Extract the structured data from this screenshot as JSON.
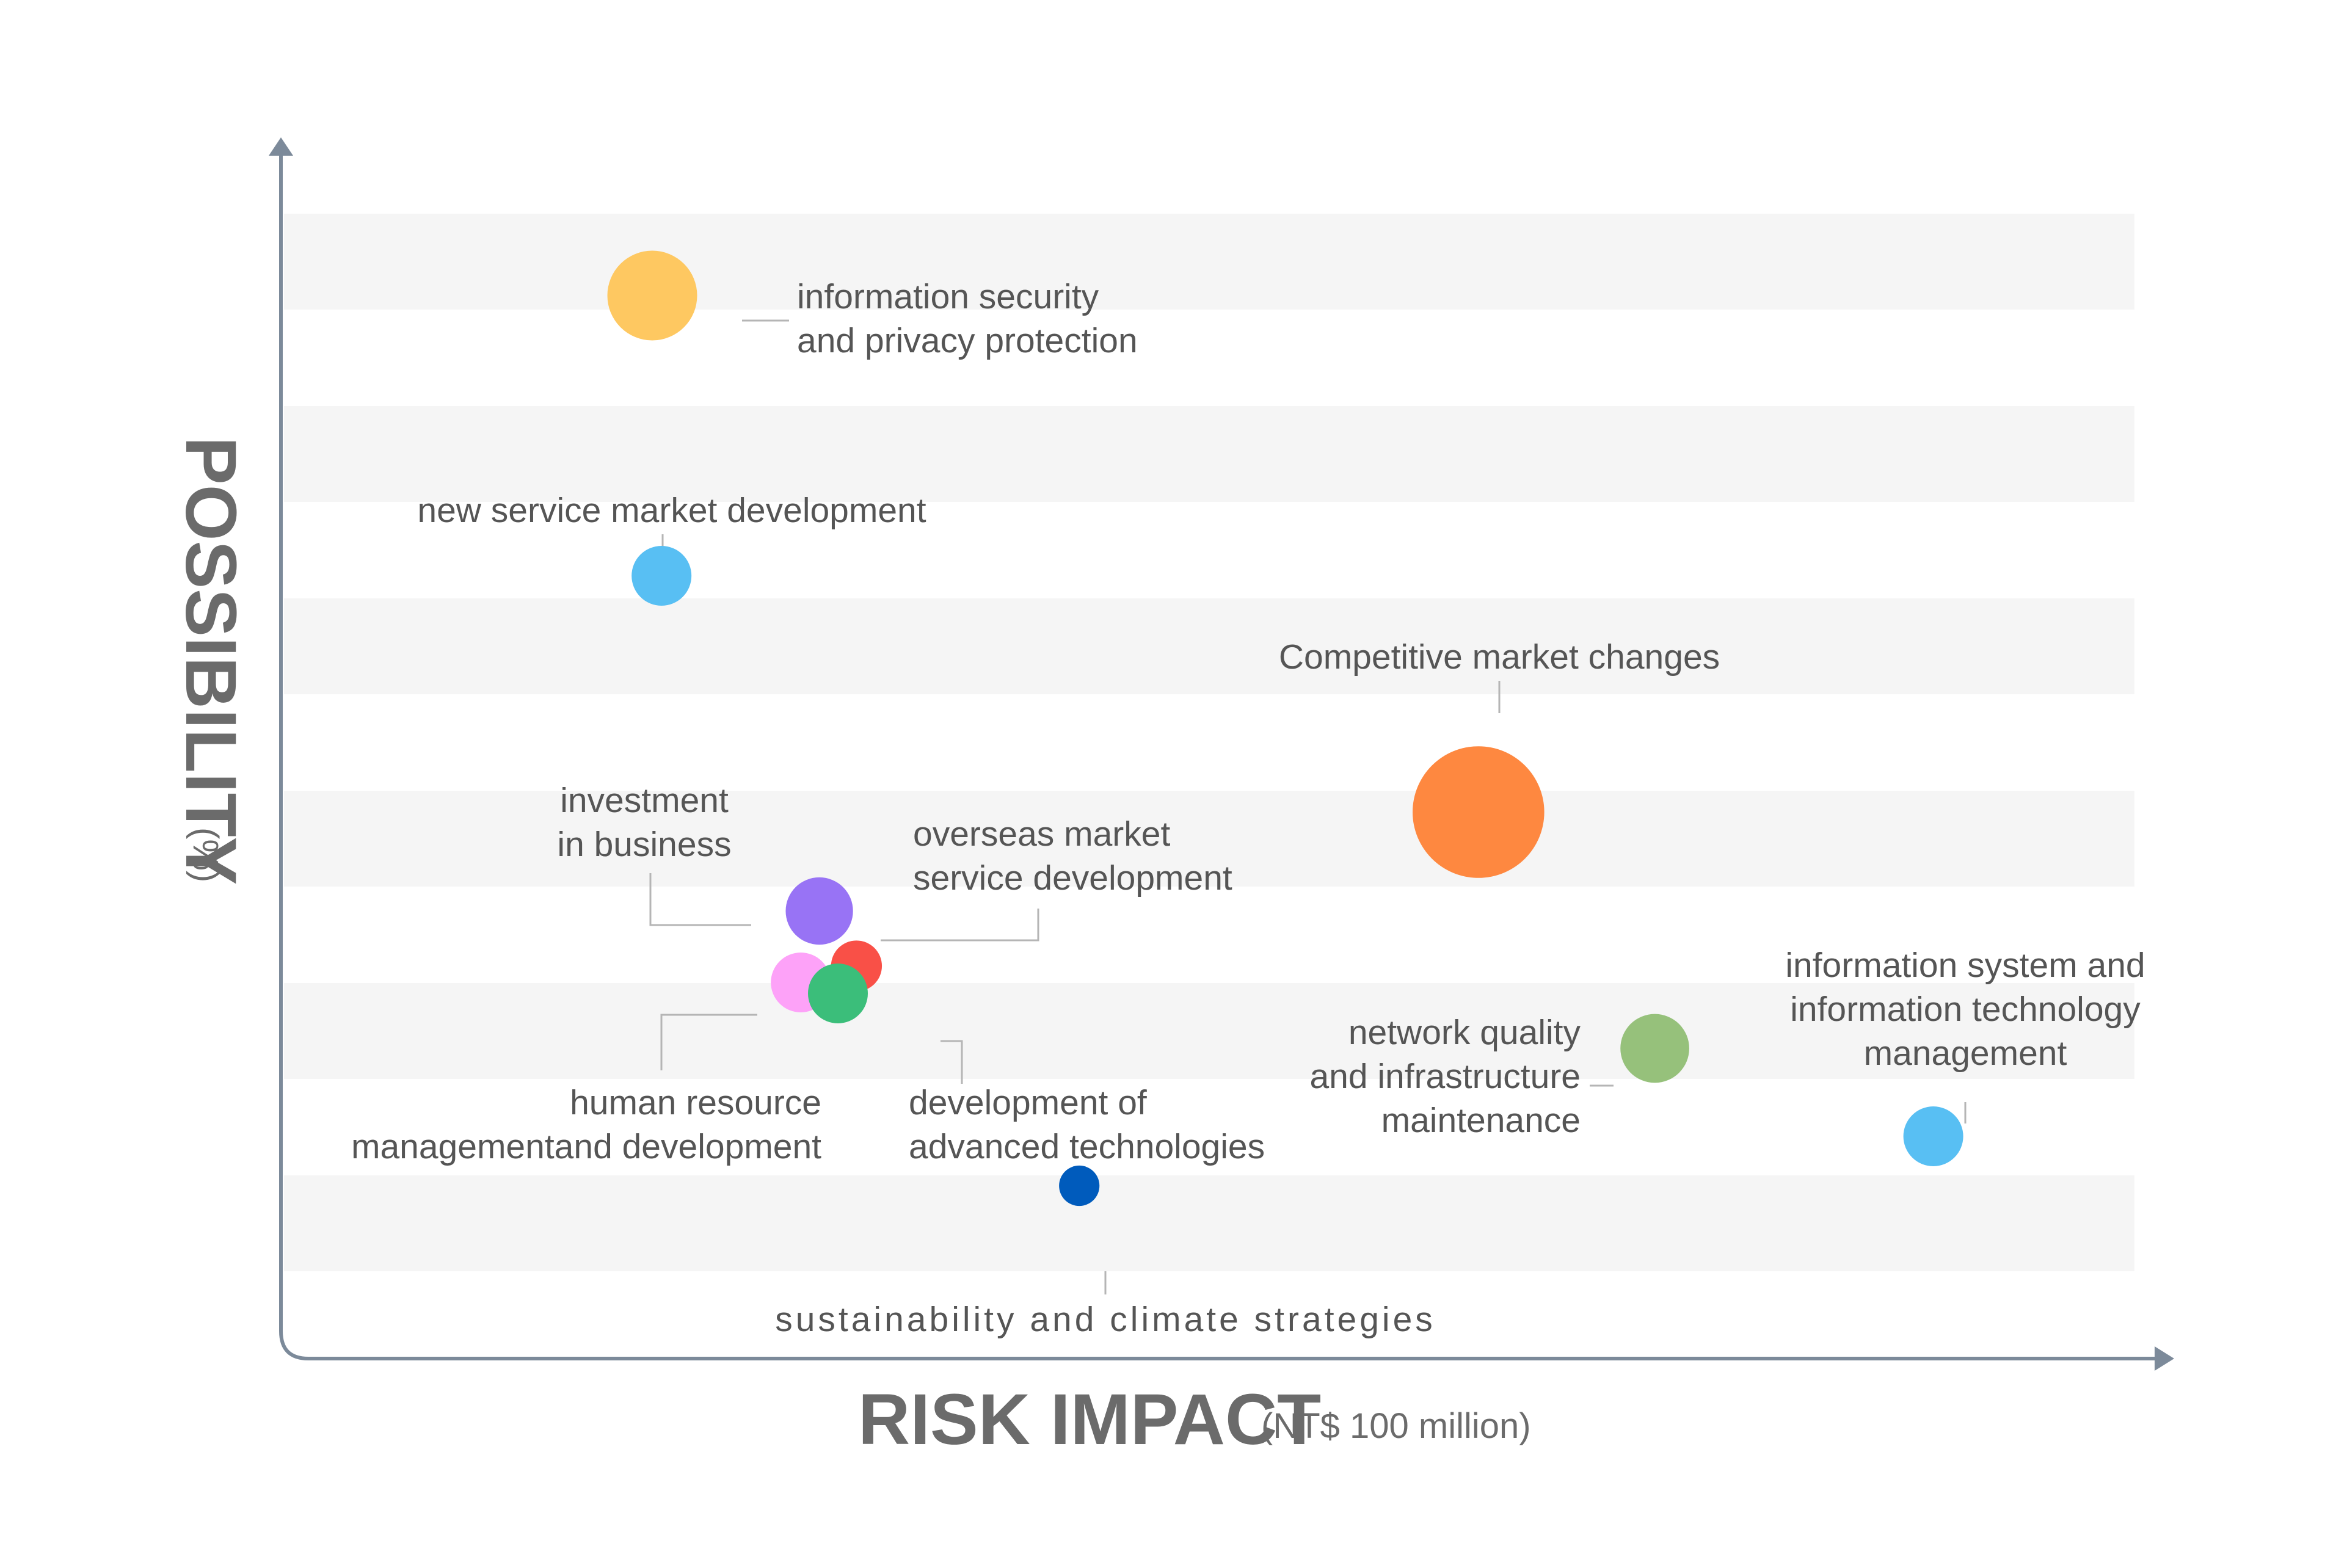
{
  "chart_data": {
    "type": "bubble",
    "xlabel": "RISK IMPACT",
    "xlabel_unit": "(NT$ 100 million)",
    "ylabel": "POSSIBILITY",
    "ylabel_unit": "(%)",
    "grid": "horizontal alternating bands",
    "series": [
      {
        "name": "information security and privacy protection",
        "label_lines": [
          "information security",
          "and privacy protection"
        ],
        "x": 0.2,
        "y": 0.92,
        "size": 0.6,
        "color": "#FEC861"
      },
      {
        "name": "new service market development",
        "label_lines": [
          "new service market development"
        ],
        "x": 0.205,
        "y": 0.665,
        "size": 0.4,
        "color": "#58BFF3"
      },
      {
        "name": "Competitive market changes",
        "label_lines": [
          "Competitive market changes"
        ],
        "x": 0.645,
        "y": 0.45,
        "size": 0.88,
        "color": "#FE8840"
      },
      {
        "name": "overseas market service development",
        "label_lines": [
          "overseas market",
          "service development"
        ],
        "x": 0.31,
        "y": 0.31,
        "size": 0.34,
        "color": "#F95047"
      },
      {
        "name": "human resource managementand development",
        "label_lines": [
          "human resource",
          "managementand development"
        ],
        "x": 0.28,
        "y": 0.295,
        "size": 0.4,
        "color": "#FDA2F8"
      },
      {
        "name": "development of advanced technologies",
        "label_lines": [
          "development of",
          "advanced technologies"
        ],
        "x": 0.3,
        "y": 0.285,
        "size": 0.4,
        "color": "#3BBE7A"
      },
      {
        "name": "investment in business",
        "label_lines": [
          "investment",
          "in business"
        ],
        "x": 0.29,
        "y": 0.36,
        "size": 0.45,
        "color": "#9873F5"
      },
      {
        "name": "network quality and infrastructure maintenance",
        "label_lines": [
          "network quality",
          "and infrastructure",
          "maintenance"
        ],
        "x": 0.74,
        "y": 0.235,
        "size": 0.46,
        "color": "#96C17B"
      },
      {
        "name": "information system and information technology management",
        "label_lines": [
          "information system and",
          "information technology",
          "management"
        ],
        "x": 0.89,
        "y": 0.155,
        "size": 0.4,
        "color": "#58BFF3"
      },
      {
        "name": "sustainability and climate strategies",
        "label_lines": [
          "sustainability and climate strategies"
        ],
        "x": 0.43,
        "y": 0.11,
        "size": 0.27,
        "color": "#005BBC"
      }
    ]
  }
}
